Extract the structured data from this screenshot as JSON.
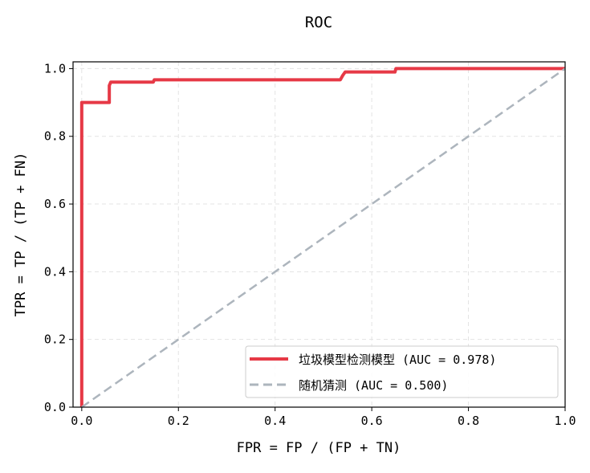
{
  "chart_data": {
    "type": "line",
    "title": "ROC",
    "xlabel": "FPR = FP / (FP + TN)",
    "ylabel": "TPR = TP / (TP + FN)",
    "xlim": [
      -0.018,
      1.0
    ],
    "ylim": [
      0.0,
      1.02
    ],
    "xticks": [
      "0.0",
      "0.2",
      "0.4",
      "0.6",
      "0.8",
      "1.0"
    ],
    "yticks": [
      "0.0",
      "0.2",
      "0.4",
      "0.6",
      "0.8",
      "1.0"
    ],
    "grid": true,
    "legend_position": "lower-right",
    "series": [
      {
        "name": "垃圾模型检测模型 (AUC = 0.978)",
        "color": "#e63946",
        "style": "solid",
        "x": [
          0,
          0,
          0.057,
          0.057,
          0.06,
          0.148,
          0.15,
          0.535,
          0.54,
          0.545,
          0.648,
          0.65,
          1.0
        ],
        "y": [
          0,
          0.9,
          0.9,
          0.95,
          0.96,
          0.96,
          0.967,
          0.967,
          0.98,
          0.99,
          0.99,
          1.0,
          1.0
        ]
      },
      {
        "name": "随机猜测 (AUC = 0.500)",
        "color": "#adb5bd",
        "style": "dashed",
        "x": [
          0,
          1
        ],
        "y": [
          0,
          1
        ]
      }
    ]
  }
}
